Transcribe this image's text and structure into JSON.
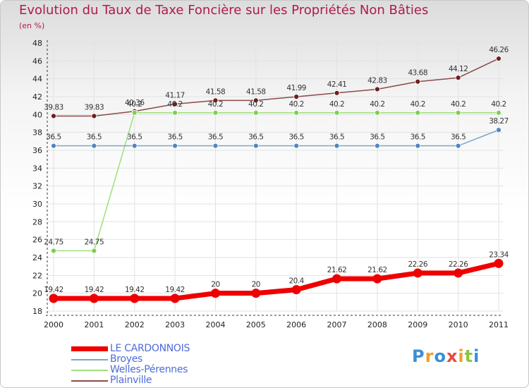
{
  "chart_data": {
    "type": "line",
    "title": "Evolution du Taux de Taxe Foncière sur les Propriétés Non Bâties",
    "subtitle": "(en %)",
    "xlabel": "",
    "ylabel": "",
    "categories": [
      "2000",
      "2001",
      "2002",
      "2003",
      "2004",
      "2005",
      "2006",
      "2007",
      "2008",
      "2009",
      "2010",
      "2011"
    ],
    "ylim": [
      18,
      48
    ],
    "yticks": [
      18,
      20,
      22,
      24,
      26,
      28,
      30,
      32,
      34,
      36,
      38,
      40,
      42,
      44,
      46,
      48
    ],
    "grid": true,
    "legend_position": "bottom-left",
    "series": [
      {
        "name": "LE CARDONNOIS",
        "color": "#ee0000",
        "style": "thick",
        "values": [
          19.42,
          19.42,
          19.42,
          19.42,
          20,
          20,
          20.4,
          21.62,
          21.62,
          22.26,
          22.26,
          23.34
        ],
        "labels": [
          "19.42",
          "19.42",
          "19.42",
          "19.42",
          "20",
          "20",
          "20.4",
          "21.62",
          "21.62",
          "22.26",
          "22.26",
          "23.34"
        ]
      },
      {
        "name": "Broyes",
        "color": "#7aa6cc",
        "marker": "#4f86c0",
        "style": "thin",
        "values": [
          36.5,
          36.5,
          36.5,
          36.5,
          36.5,
          36.5,
          36.5,
          36.5,
          36.5,
          36.5,
          36.5,
          38.27
        ],
        "labels": [
          "36.5",
          "36.5",
          "36.5",
          "36.5",
          "36.5",
          "36.5",
          "36.5",
          "36.5",
          "36.5",
          "36.5",
          "36.5",
          "38.27"
        ]
      },
      {
        "name": "Welles-Pérennes",
        "color": "#9ee07e",
        "marker": "#7dcf52",
        "style": "thin",
        "values": [
          24.75,
          24.75,
          40.2,
          40.2,
          40.2,
          40.2,
          40.2,
          40.2,
          40.2,
          40.2,
          40.2,
          40.2
        ],
        "labels": [
          "24.75",
          "24.75",
          "40.2",
          "40.2",
          "40.2",
          "40.2",
          "40.2",
          "40.2",
          "40.2",
          "40.2",
          "40.2",
          "40.2"
        ]
      },
      {
        "name": "Plainville",
        "color": "#8a4a4a",
        "marker": "#6e1e1e",
        "style": "thin",
        "values": [
          39.83,
          39.83,
          40.36,
          41.17,
          41.58,
          41.58,
          41.99,
          42.41,
          42.83,
          43.68,
          44.12,
          46.26
        ],
        "labels": [
          "39.83",
          "39.83",
          "40.36",
          "41.17",
          "41.58",
          "41.58",
          "41.99",
          "42.41",
          "42.83",
          "43.68",
          "44.12",
          "46.26"
        ]
      }
    ]
  },
  "logo": {
    "letters": [
      "P",
      "r",
      "o",
      "x",
      "i",
      "t",
      "i"
    ],
    "colors": [
      "#3a8fd6",
      "#f39c2a",
      "#3a8fd6",
      "#e84a3c",
      "#f39c2a",
      "#8cc63f",
      "#3a8fd6"
    ]
  }
}
